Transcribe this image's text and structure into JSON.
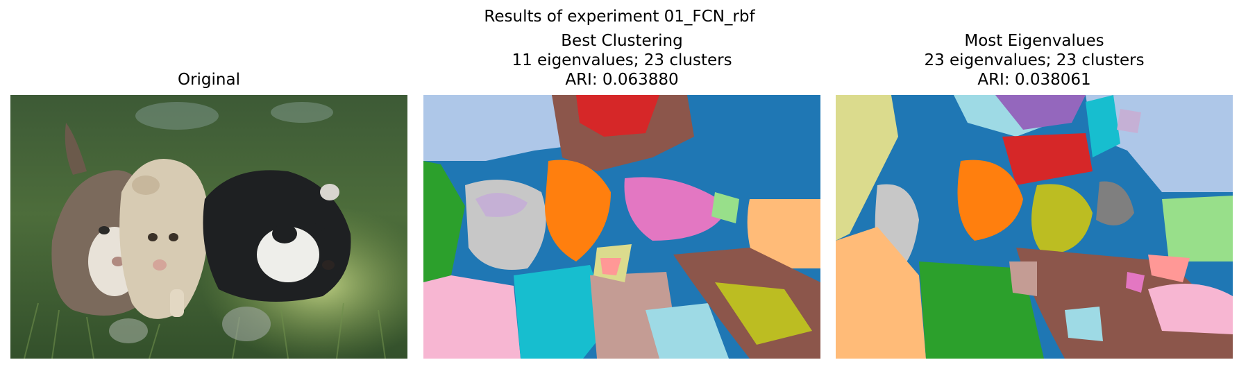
{
  "figure": {
    "suptitle": "Results of experiment 01_FCN_rbf"
  },
  "panels": [
    {
      "title_lines": [
        "Original"
      ],
      "kind": "photo"
    },
    {
      "title_lines": [
        "Best Clustering",
        "11 eigenvalues; 23 clusters",
        "ARI: 0.063880"
      ],
      "kind": "segmentation"
    },
    {
      "title_lines": [
        "Most Eigenvalues",
        "23 eigenvalues; 23 clusters",
        "ARI: 0.038061"
      ],
      "kind": "segmentation"
    }
  ],
  "palette": {
    "tab_blue": "#1f77b4",
    "light_blue": "#aec7e8",
    "orange": "#ff7f0e",
    "light_orange": "#ffbb78",
    "green": "#2ca02c",
    "light_green": "#98df8a",
    "red": "#d62728",
    "pink_red": "#ff9896",
    "purple": "#9467bd",
    "lavender": "#c5b0d5",
    "brown": "#8c564b",
    "tan": "#c49c94",
    "magenta": "#e377c2",
    "light_pink": "#f7b6d2",
    "gray": "#7f7f7f",
    "light_gray": "#c7c7c7",
    "olive": "#bcbd22",
    "khaki": "#dbdb8d",
    "cyan": "#17becf",
    "light_cyan": "#9edae5"
  }
}
